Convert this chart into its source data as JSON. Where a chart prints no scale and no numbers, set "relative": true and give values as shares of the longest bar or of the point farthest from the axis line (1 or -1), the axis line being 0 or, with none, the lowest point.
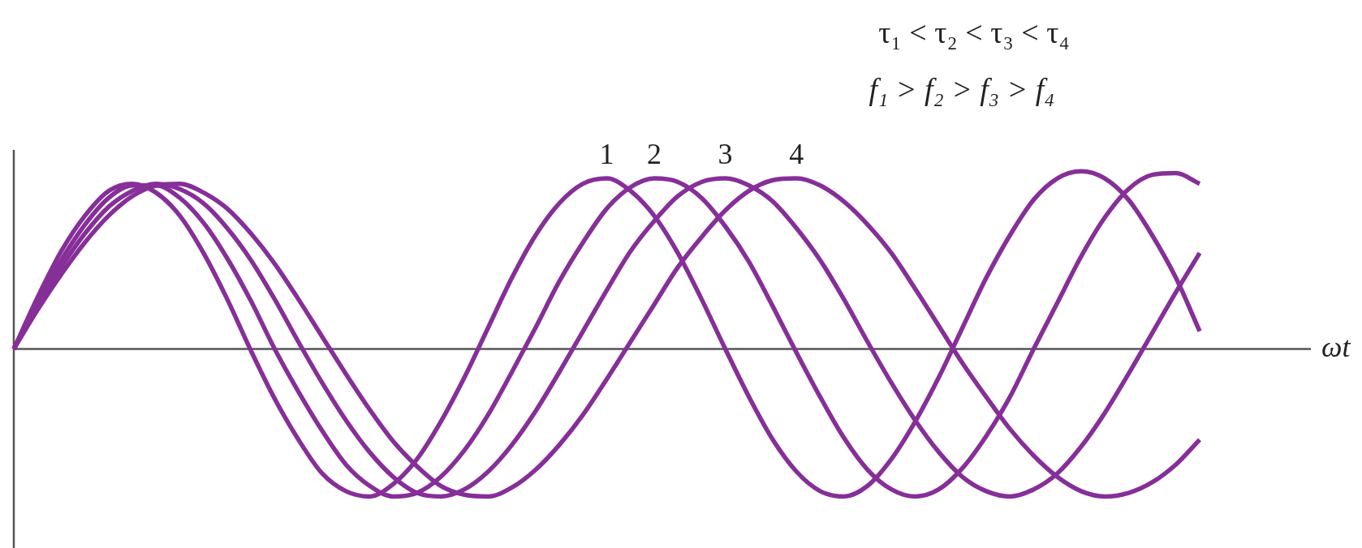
{
  "chart_data": {
    "type": "line",
    "title": "τ₁ < τ₂ < τ₃ < τ₄",
    "subtitle": "f₁ > f₂ > f₃ > f₄",
    "xlabel": "ωt",
    "relative": true,
    "categories": [
      null,
      null,
      null,
      null,
      null,
      null,
      null,
      null,
      null,
      null,
      null,
      null,
      null,
      null,
      null,
      null,
      null,
      null,
      null,
      null,
      null,
      null,
      null,
      null,
      null,
      null,
      null,
      null,
      null,
      null,
      null,
      null,
      null,
      null,
      null,
      null,
      null,
      null,
      null,
      null,
      null,
      null,
      null,
      null,
      null,
      null,
      null,
      null,
      null,
      null,
      null
    ],
    "series": [
      {
        "name": "1",
        "color": "#862f98",
        "values": [
          0,
          0.29,
          0.55,
          0.75,
          0.89,
          0.93,
          0.88,
          0.75,
          0.54,
          0.28,
          -0.01,
          -0.28,
          -0.51,
          -0.7,
          -0.8,
          -0.83,
          -0.76,
          -0.62,
          -0.41,
          -0.16,
          0.12,
          0.4,
          0.64,
          0.82,
          0.93,
          0.96,
          0.89,
          0.75,
          0.54,
          0.28,
          0,
          -0.27,
          -0.51,
          -0.69,
          -0.8,
          -0.83,
          -0.77,
          -0.62,
          -0.41,
          -0.16,
          0.12,
          0.4,
          0.64,
          0.84,
          0.96,
          1,
          0.96,
          0.84,
          0.64,
          0.4,
          0.1
        ]
      },
      {
        "name": "2",
        "color": "#862f98",
        "values": [
          0,
          0.26,
          0.5,
          0.7,
          0.85,
          0.92,
          0.92,
          0.85,
          0.71,
          0.51,
          0.27,
          0,
          -0.24,
          -0.46,
          -0.65,
          -0.77,
          -0.83,
          -0.81,
          -0.72,
          -0.57,
          -0.37,
          -0.13,
          0.12,
          0.38,
          0.6,
          0.79,
          0.91,
          0.96,
          0.94,
          0.85,
          0.69,
          0.49,
          0.24,
          -0.02,
          -0.27,
          -0.5,
          -0.68,
          -0.79,
          -0.83,
          -0.79,
          -0.67,
          -0.49,
          -0.27,
          0,
          0.26,
          0.52,
          0.74,
          0.9,
          0.98,
          0.99,
          0.93
        ]
      },
      {
        "name": "3",
        "color": "#862f98",
        "values": [
          0,
          0.24,
          0.46,
          0.65,
          0.8,
          0.89,
          0.93,
          0.9,
          0.82,
          0.68,
          0.5,
          0.28,
          0.04,
          -0.19,
          -0.4,
          -0.58,
          -0.72,
          -0.81,
          -0.83,
          -0.79,
          -0.69,
          -0.54,
          -0.35,
          -0.13,
          0.1,
          0.33,
          0.55,
          0.72,
          0.86,
          0.94,
          0.96,
          0.92,
          0.83,
          0.68,
          0.5,
          0.28,
          0.04,
          -0.19,
          -0.4,
          -0.58,
          -0.72,
          -0.8,
          -0.83,
          -0.79,
          -0.7,
          -0.55,
          -0.36,
          -0.14,
          0.09,
          0.32,
          0.54
        ]
      },
      {
        "name": "4",
        "color": "#862f98",
        "values": [
          0,
          0.22,
          0.42,
          0.6,
          0.75,
          0.86,
          0.92,
          0.93,
          0.88,
          0.79,
          0.65,
          0.48,
          0.28,
          0.07,
          -0.14,
          -0.34,
          -0.52,
          -0.66,
          -0.77,
          -0.82,
          -0.83,
          -0.78,
          -0.68,
          -0.54,
          -0.37,
          -0.17,
          0.04,
          0.25,
          0.46,
          0.63,
          0.78,
          0.89,
          0.95,
          0.96,
          0.92,
          0.83,
          0.7,
          0.54,
          0.34,
          0.13,
          -0.08,
          -0.27,
          -0.45,
          -0.6,
          -0.72,
          -0.8,
          -0.83,
          -0.81,
          -0.75,
          -0.65,
          -0.51
        ]
      }
    ]
  }
}
